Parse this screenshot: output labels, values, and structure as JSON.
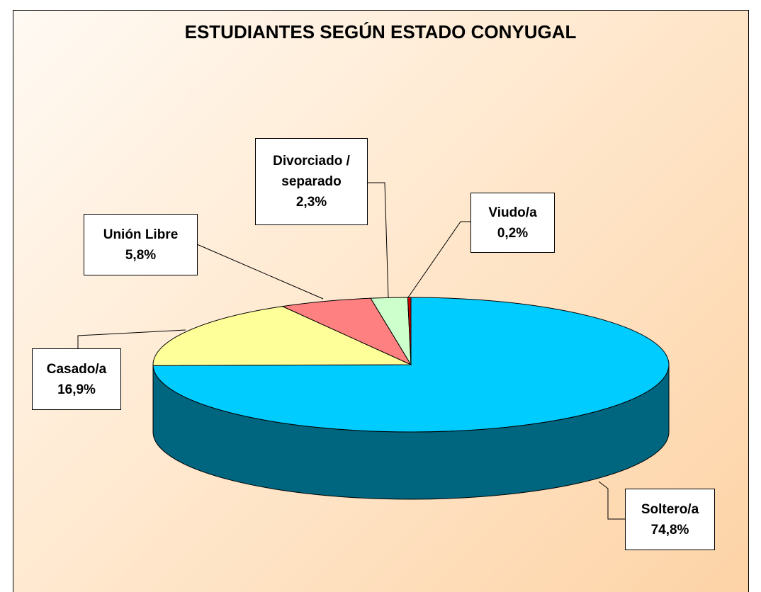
{
  "chart_data": {
    "type": "pie3d",
    "title": "ESTUDIANTES SEGÚN ESTADO CONYUGAL",
    "categories": [
      "Soltero/a",
      "Casado/a",
      "Unión Libre",
      "Divorciado / separado",
      "Viudo/a"
    ],
    "values": [
      74.8,
      16.9,
      5.8,
      2.3,
      0.2
    ],
    "value_labels": [
      "74,8%",
      "16,9%",
      "5,8%",
      "2,3%",
      "0,2%"
    ],
    "colors": [
      "#00ccff",
      "#ffff99",
      "#ff8080",
      "#ccffcc",
      "#cc0000"
    ]
  }
}
